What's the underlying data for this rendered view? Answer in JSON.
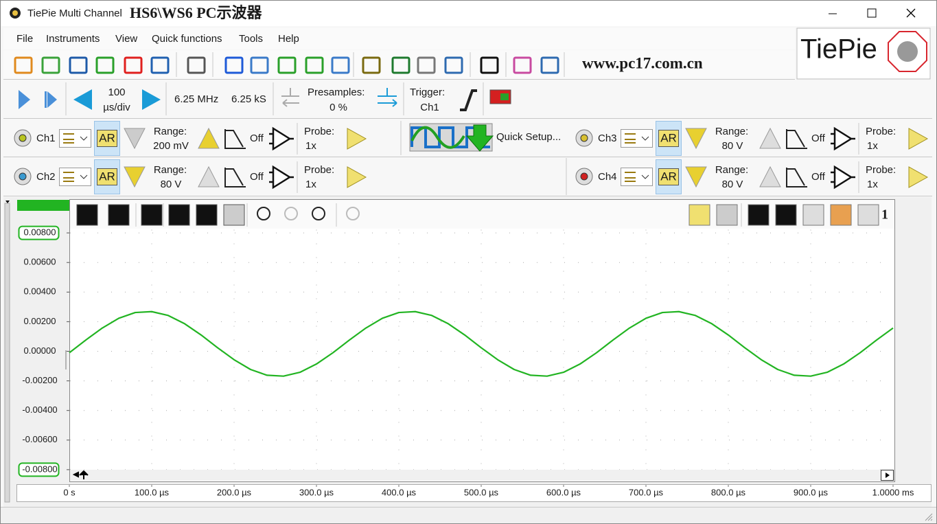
{
  "window": {
    "title": "TiePie Multi Channel",
    "overlay": "HS6\\WS6 PC示波器"
  },
  "menu": [
    "File",
    "Instruments",
    "View",
    "Quick functions",
    "Tools",
    "Help"
  ],
  "logo": "TiePie",
  "watermark": "www.pc17.com.cn",
  "acquisition": {
    "timebase_value": "100",
    "timebase_unit": "µs/div",
    "sample_rate": "6.25 MHz",
    "record_length": "6.25 kS",
    "presamples_label": "Presamples:",
    "presamples_value": "0 %",
    "trigger_label": "Trigger:",
    "trigger_source": "Ch1"
  },
  "quick_setup": "Quick Setup...",
  "channels": [
    {
      "name": "Ch1",
      "autorange": "AR",
      "range_label": "Range:",
      "range": "200 mV",
      "filter": "Off",
      "probe_label": "Probe:",
      "probe": "1x"
    },
    {
      "name": "Ch2",
      "autorange": "AR",
      "range_label": "Range:",
      "range": "80 V",
      "filter": "Off",
      "probe_label": "Probe:",
      "probe": "1x"
    },
    {
      "name": "Ch3",
      "autorange": "AR",
      "range_label": "Range:",
      "range": "80 V",
      "filter": "Off",
      "probe_label": "Probe:",
      "probe": "1x"
    },
    {
      "name": "Ch4",
      "autorange": "AR",
      "range_label": "Range:",
      "range": "80 V",
      "filter": "Off",
      "probe_label": "Probe:",
      "probe": "1x"
    }
  ],
  "scope_number": "1",
  "chart_data": {
    "type": "line",
    "x": [
      0,
      2e-05,
      4e-05,
      6e-05,
      8e-05,
      0.0001,
      0.00012,
      0.00014,
      0.00016,
      0.00018,
      0.0002,
      0.00022,
      0.00024,
      0.00026,
      0.00028,
      0.0003,
      0.00032,
      0.00034,
      0.00036,
      0.00038,
      0.0004,
      0.00042,
      0.00044,
      0.00046,
      0.00048,
      0.0005,
      0.00052,
      0.00054,
      0.00056,
      0.00058,
      0.0006,
      0.00062,
      0.00064,
      0.00066,
      0.00068,
      0.0007,
      0.00072,
      0.00074,
      0.00076,
      0.00078,
      0.0008,
      0.00082,
      0.00084,
      0.00086,
      0.00088,
      0.0009,
      0.00092,
      0.00094,
      0.00096,
      0.00098,
      0.001
    ],
    "series": [
      {
        "color": "#22b422",
        "values": [
          -0.0001,
          0.00076,
          0.00157,
          0.00223,
          0.00262,
          0.00268,
          0.00242,
          0.00186,
          0.0011,
          0.00024,
          -0.00057,
          -0.00123,
          -0.00162,
          -0.00168,
          -0.00142,
          -0.00086,
          -0.0001,
          0.00076,
          0.00157,
          0.00223,
          0.00262,
          0.00268,
          0.00242,
          0.00186,
          0.0011,
          0.00024,
          -0.00057,
          -0.00123,
          -0.00162,
          -0.00168,
          -0.00142,
          -0.00086,
          -0.0001,
          0.00076,
          0.00157,
          0.00223,
          0.00262,
          0.00268,
          0.00242,
          0.00186,
          0.0011,
          0.00024,
          -0.00057,
          -0.00123,
          -0.00162,
          -0.00168,
          -0.00142,
          -0.00086,
          -0.0001,
          0.00076,
          0.00157
        ]
      }
    ],
    "xlim": [
      0,
      0.001
    ],
    "xticks": [
      {
        "value": 0,
        "label": "0 s"
      },
      {
        "value": 0.0001,
        "label": "100.0 µs"
      },
      {
        "value": 0.0002,
        "label": "200.0 µs"
      },
      {
        "value": 0.0003,
        "label": "300.0 µs"
      },
      {
        "value": 0.0004,
        "label": "400.0 µs"
      },
      {
        "value": 0.0005,
        "label": "500.0 µs"
      },
      {
        "value": 0.0006,
        "label": "600.0 µs"
      },
      {
        "value": 0.0007,
        "label": "700.0 µs"
      },
      {
        "value": 0.0008,
        "label": "800.0 µs"
      },
      {
        "value": 0.0009,
        "label": "900.0 µs"
      },
      {
        "value": 0.001,
        "label": "1.0000 ms"
      }
    ],
    "ylim": [
      -0.0084,
      0.0084
    ],
    "yticks": [
      {
        "value": 0.008,
        "label": "0.00800"
      },
      {
        "value": 0.006,
        "label": "0.00600"
      },
      {
        "value": 0.004,
        "label": "0.00400"
      },
      {
        "value": 0.002,
        "label": "0.00200"
      },
      {
        "value": 0,
        "label": "0.00000"
      },
      {
        "value": -0.002,
        "label": "-0.00200"
      },
      {
        "value": -0.004,
        "label": "-0.00400"
      },
      {
        "value": -0.006,
        "label": "-0.00600"
      },
      {
        "value": -0.008,
        "label": "-0.00800"
      }
    ],
    "grid": true
  }
}
